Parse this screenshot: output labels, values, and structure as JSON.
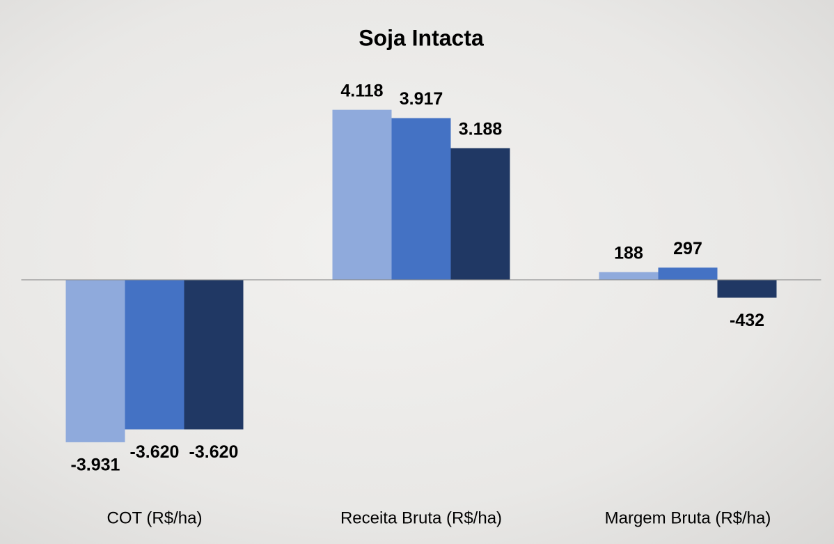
{
  "chart_data": {
    "type": "bar",
    "title": "Soja Intacta",
    "categories": [
      "COT (R$/ha)",
      "Receita Bruta (R$/ha)",
      "Margem Bruta (R$/ha)"
    ],
    "series": [
      {
        "color": "#8faadc",
        "values": [
          -3931,
          4118,
          188
        ],
        "value_labels": [
          "-3.931",
          "4.118",
          "188"
        ]
      },
      {
        "color": "#4472c4",
        "values": [
          -3620,
          3917,
          297
        ],
        "value_labels": [
          "-3.620",
          "3.917",
          "297"
        ]
      },
      {
        "color": "#203864",
        "values": [
          -3620,
          3188,
          -432
        ],
        "value_labels": [
          "-3.620",
          "3.188",
          "-432"
        ]
      }
    ],
    "ylim": [
      -4000,
      4500
    ]
  }
}
